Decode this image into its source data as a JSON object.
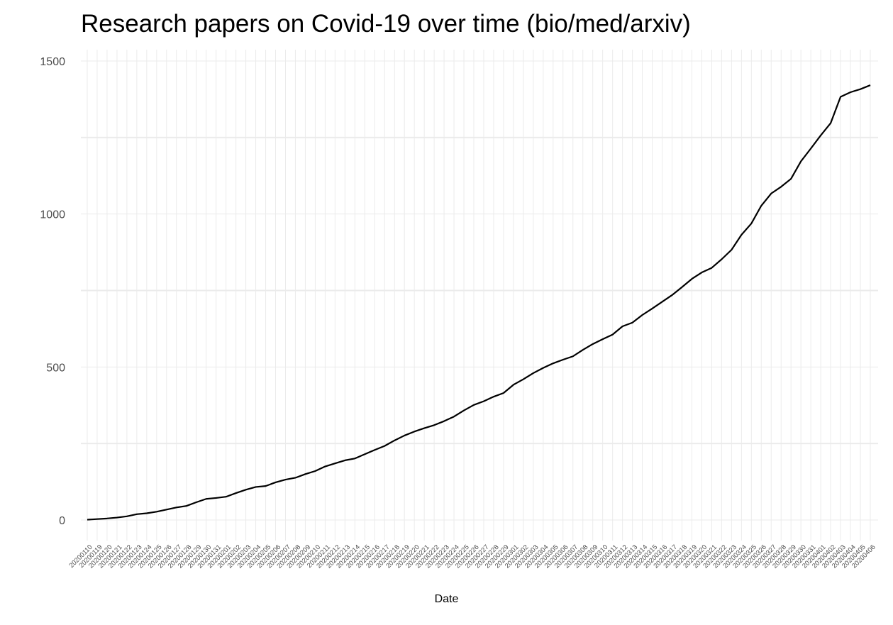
{
  "chart_data": {
    "type": "line",
    "title": "Research papers on Covid-19 over time (bio/med/arxiv)",
    "xlabel": "Date",
    "ylabel": "",
    "ylim": [
      -65,
      1520
    ],
    "yticks": [
      0,
      500,
      1000,
      1500
    ],
    "grid": true,
    "legend": "none",
    "line_color": "#000000",
    "grid_color": "#ebebeb",
    "x": [
      "20200110",
      "20200119",
      "20200120",
      "20200121",
      "20200122",
      "20200123",
      "20200124",
      "20200125",
      "20200126",
      "20200127",
      "20200128",
      "20200129",
      "20200130",
      "20200131",
      "20200201",
      "20200202",
      "20200203",
      "20200204",
      "20200205",
      "20200206",
      "20200207",
      "20200208",
      "20200209",
      "20200210",
      "20200211",
      "20200212",
      "20200213",
      "20200214",
      "20200215",
      "20200216",
      "20200217",
      "20200218",
      "20200219",
      "20200220",
      "20200221",
      "20200222",
      "20200223",
      "20200224",
      "20200225",
      "20200226",
      "20200227",
      "20200228",
      "20200229",
      "20200301",
      "20200302",
      "20200303",
      "20200304",
      "20200305",
      "20200306",
      "20200307",
      "20200308",
      "20200309",
      "20200310",
      "20200311",
      "20200312",
      "20200313",
      "20200314",
      "20200315",
      "20200316",
      "20200317",
      "20200318",
      "20200319",
      "20200320",
      "20200321",
      "20200322",
      "20200323",
      "20200324",
      "20200325",
      "20200326",
      "20200327",
      "20200328",
      "20200329",
      "20200330",
      "20200331",
      "20200401",
      "20200402",
      "20200403",
      "20200404",
      "20200405",
      "20200406"
    ],
    "values": [
      1,
      3,
      5,
      8,
      12,
      19,
      22,
      27,
      34,
      41,
      46,
      58,
      69,
      72,
      76,
      88,
      99,
      108,
      111,
      123,
      132,
      138,
      150,
      160,
      175,
      185,
      195,
      201,
      215,
      229,
      242,
      260,
      276,
      289,
      300,
      310,
      323,
      338,
      358,
      376,
      388,
      403,
      415,
      442,
      460,
      480,
      497,
      512,
      524,
      535,
      556,
      575,
      591,
      606,
      633,
      645,
      670,
      691,
      713,
      735,
      761,
      788,
      809,
      824,
      852,
      883,
      932,
      969,
      1027,
      1067,
      1089,
      1115,
      1172,
      1214,
      1257,
      1297,
      1383,
      1398,
      1408,
      1421
    ]
  }
}
